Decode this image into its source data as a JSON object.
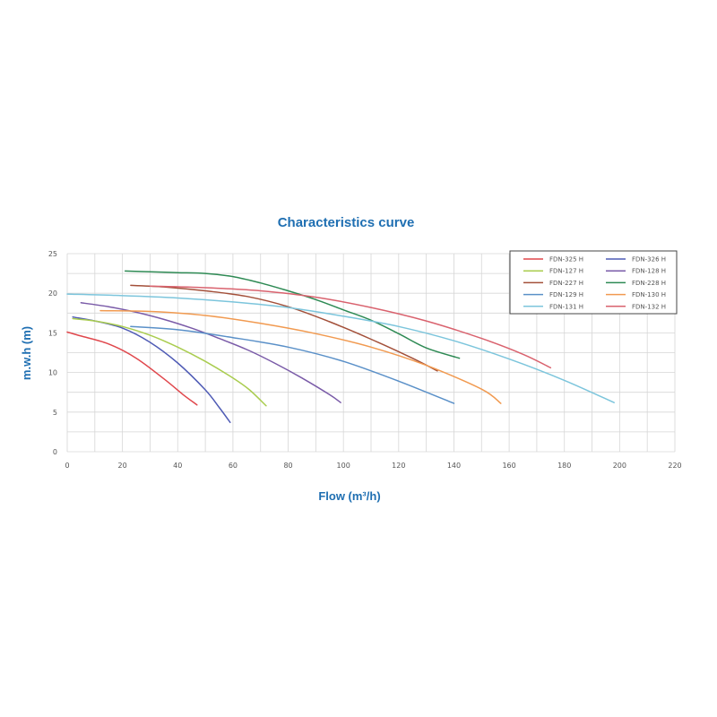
{
  "chart_data": {
    "type": "line",
    "title": "Characteristics curve",
    "xlabel": "Flow (m³/h)",
    "ylabel": "m.w.h (m)",
    "xlim": [
      0,
      220
    ],
    "ylim": [
      0,
      25
    ],
    "xticks": [
      "0",
      "20",
      "40",
      "60",
      "80",
      "100",
      "120",
      "140",
      "160",
      "180",
      "200",
      "220"
    ],
    "yticks": [
      "0",
      "5",
      "10",
      "15",
      "20",
      "25"
    ],
    "grid": true,
    "legend_position": "top-right",
    "series": [
      {
        "name": "FDN-325 H",
        "color": "#e0474c",
        "x": [
          0,
          5,
          15,
          25,
          35,
          42,
          47
        ],
        "y": [
          15.1,
          14.6,
          13.6,
          11.8,
          9.2,
          7.2,
          5.9
        ]
      },
      {
        "name": "FDN-326 H",
        "color": "#4f5bb5",
        "x": [
          2,
          10,
          20,
          30,
          40,
          50,
          55,
          59
        ],
        "y": [
          17.0,
          16.5,
          15.6,
          13.8,
          11.2,
          7.8,
          5.6,
          3.7
        ]
      },
      {
        "name": "FDN-127 H",
        "color": "#a9cc4e",
        "x": [
          2,
          10,
          20,
          30,
          40,
          50,
          60,
          66,
          72
        ],
        "y": [
          16.8,
          16.5,
          15.8,
          14.7,
          13.2,
          11.4,
          9.3,
          7.8,
          5.8
        ]
      },
      {
        "name": "FDN-128 H",
        "color": "#7a5ba8",
        "x": [
          5,
          15,
          25,
          35,
          45,
          55,
          65,
          75,
          85,
          95,
          99
        ],
        "y": [
          18.8,
          18.3,
          17.6,
          16.7,
          15.6,
          14.3,
          12.9,
          11.2,
          9.3,
          7.2,
          6.2
        ]
      },
      {
        "name": "FDN-227 H",
        "color": "#a3503a",
        "x": [
          23,
          35,
          50,
          65,
          80,
          95,
          110,
          125,
          134
        ],
        "y": [
          21.0,
          20.8,
          20.3,
          19.6,
          18.3,
          16.4,
          14.2,
          11.8,
          10.2
        ]
      },
      {
        "name": "FDN-228 H",
        "color": "#2e8a54",
        "x": [
          21,
          30,
          40,
          50,
          60,
          70,
          80,
          90,
          100,
          110,
          120,
          130,
          142
        ],
        "y": [
          22.8,
          22.7,
          22.6,
          22.5,
          22.1,
          21.3,
          20.3,
          19.2,
          17.9,
          16.6,
          14.9,
          13.1,
          11.8
        ]
      },
      {
        "name": "FDN-129 H",
        "color": "#5a90c8",
        "x": [
          23,
          40,
          60,
          80,
          100,
          120,
          140
        ],
        "y": [
          15.8,
          15.4,
          14.4,
          13.2,
          11.4,
          8.9,
          6.1
        ]
      },
      {
        "name": "FDN-130 H",
        "color": "#f19a50",
        "x": [
          12,
          30,
          50,
          70,
          90,
          110,
          130,
          150,
          157
        ],
        "y": [
          17.8,
          17.7,
          17.2,
          16.2,
          14.9,
          13.2,
          10.9,
          7.9,
          6.1
        ]
      },
      {
        "name": "FDN-131 H",
        "color": "#7cc5dc",
        "x": [
          0,
          20,
          40,
          60,
          80,
          100,
          120,
          140,
          160,
          180,
          198
        ],
        "y": [
          19.9,
          19.7,
          19.4,
          18.9,
          18.2,
          17.1,
          15.8,
          14.0,
          11.7,
          9.0,
          6.2
        ]
      },
      {
        "name": "FDN-132 H",
        "color": "#d9626e",
        "x": [
          30,
          50,
          70,
          90,
          110,
          130,
          150,
          165,
          175
        ],
        "y": [
          20.9,
          20.7,
          20.3,
          19.5,
          18.2,
          16.5,
          14.3,
          12.3,
          10.6
        ]
      }
    ]
  }
}
